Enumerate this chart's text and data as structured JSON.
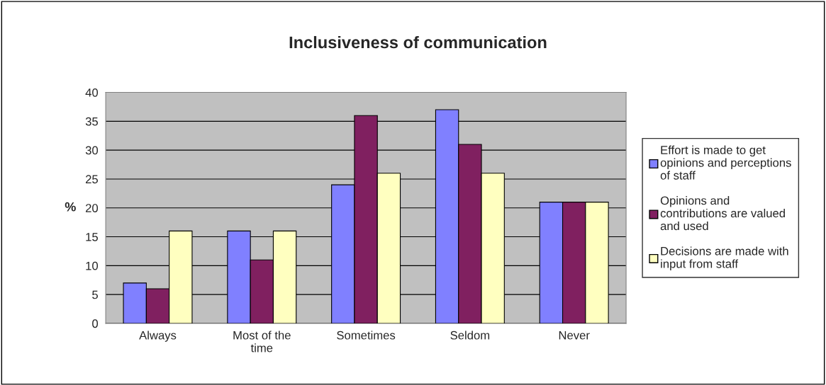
{
  "chart_data": {
    "type": "bar",
    "title": "Inclusiveness of communication",
    "ylabel": "%",
    "categories": [
      "Always",
      "Most of the\ntime",
      "Sometimes",
      "Seldom",
      "Never"
    ],
    "series": [
      {
        "name": "Effort is made to get opinions and perceptions of staff",
        "color": "#8080ff",
        "values": [
          7,
          16,
          24,
          37,
          21
        ]
      },
      {
        "name": "Opinions and contributions are valued and used",
        "color": "#802060",
        "values": [
          6,
          11,
          36,
          31,
          21
        ]
      },
      {
        "name": "Decisions are made with input from staff",
        "color": "#ffffc0",
        "values": [
          16,
          16,
          26,
          26,
          21
        ]
      }
    ],
    "ylim": [
      0,
      40
    ],
    "yticks": [
      0,
      5,
      10,
      15,
      20,
      25,
      30,
      35,
      40
    ],
    "grid": "y",
    "legend": "right"
  }
}
